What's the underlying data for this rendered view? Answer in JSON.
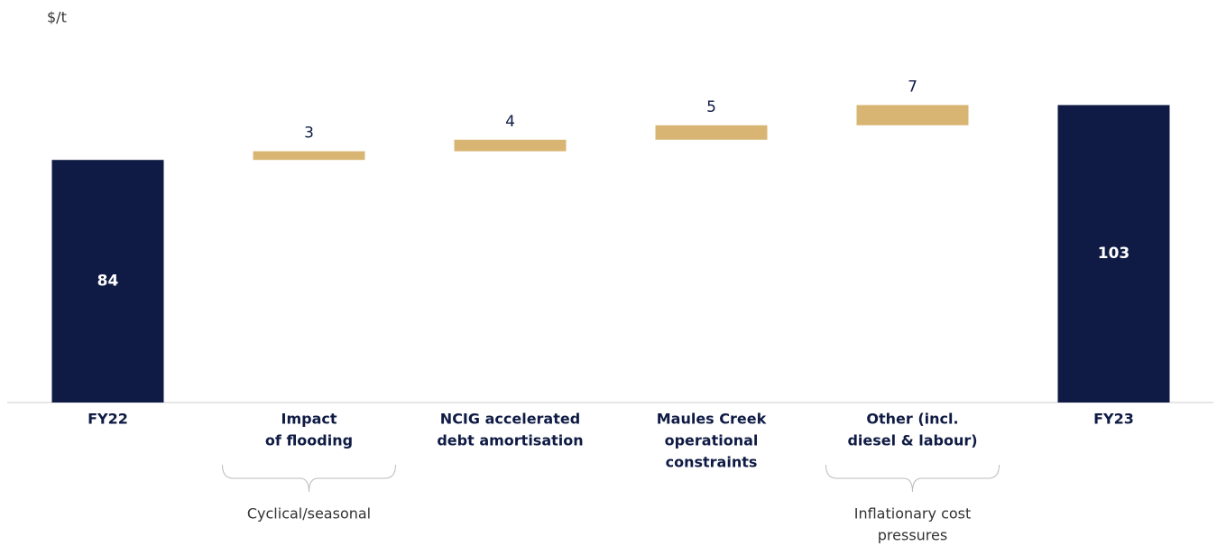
{
  "chart_data": {
    "type": "waterfall",
    "y_label": "$/t",
    "categories": [
      [
        "FY22"
      ],
      [
        "Impact",
        "of flooding"
      ],
      [
        "NCIG accelerated",
        "debt amortisation"
      ],
      [
        "Maules Creek",
        "operational",
        "constraints"
      ],
      [
        "Other (incl.",
        "diesel & labour)"
      ],
      [
        "FY23"
      ]
    ],
    "values": [
      84,
      3,
      4,
      5,
      7,
      103
    ],
    "measure": [
      "total",
      "relative",
      "relative",
      "relative",
      "relative",
      "total"
    ],
    "total_color": "#0f1b44",
    "increase_color": "#d9b573",
    "ylim": [
      0,
      130
    ],
    "annotations": [
      [
        "Cyclical/seasonal"
      ],
      [
        "Inflationary cost",
        "pressures"
      ]
    ]
  }
}
